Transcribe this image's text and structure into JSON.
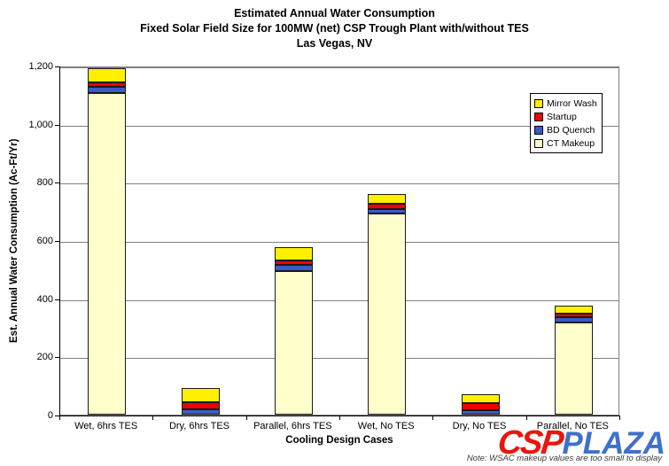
{
  "title": {
    "line1": "Estimated Annual Water Consumption",
    "line2": "Fixed Solar Field Size for 100MW (net) CSP Trough Plant with/without TES",
    "line3": "Las Vegas, NV"
  },
  "chart_data": {
    "type": "bar",
    "stacked": true,
    "categories": [
      "Wet, 6hrs TES",
      "Dry, 6hrs TES",
      "Parallel, 6hrs TES",
      "Wet, No TES",
      "Dry, No TES",
      "Parallel, No TES"
    ],
    "series": [
      {
        "name": "CT Makeup",
        "color": "#FFFFCC",
        "values": [
          1105,
          0,
          494,
          692,
          0,
          317
        ]
      },
      {
        "name": "BD Quench",
        "color": "#3A5BC8",
        "values": [
          22,
          18,
          20,
          15,
          14,
          17
        ]
      },
      {
        "name": "Startup",
        "color": "#EE0000",
        "values": [
          16,
          25,
          15,
          19,
          25,
          13
        ]
      },
      {
        "name": "Mirror Wash",
        "color": "#FFF000",
        "values": [
          47,
          47,
          46,
          32,
          30,
          28
        ]
      }
    ],
    "totals": [
      1190,
      90,
      575,
      758,
      69,
      375
    ],
    "legend_order": [
      "Mirror Wash",
      "Startup",
      "BD Quench",
      "CT Makeup"
    ],
    "legend_position": "upper-right",
    "xlabel": "Cooling Design Cases",
    "ylabel": "Est. Annual Water Consumption (Ac-Ft/Yr)",
    "ylim": [
      0,
      1200
    ],
    "ytick_step": 200,
    "ytick_labels": [
      "0",
      "200",
      "400",
      "600",
      "800",
      "1,000",
      "1,200"
    ],
    "grid": true
  },
  "note": "Note: WSAC makeup values are too small to display",
  "watermark": {
    "csp_text": "CSP",
    "plaza_text": "PLAZA",
    "csp_color": "#E8170E",
    "plaza_color": "#2B62C6"
  }
}
